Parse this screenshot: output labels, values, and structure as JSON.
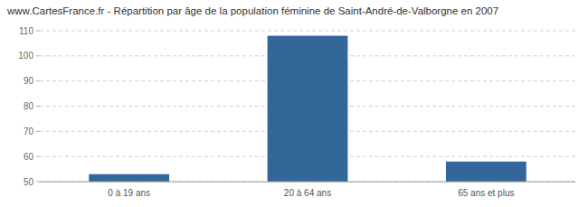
{
  "chart_data": {
    "type": "bar",
    "title": "www.CartesFrance.fr - Répartition par âge de la population féminine de Saint-André-de-Valborgne en 2007",
    "categories": [
      "0 à 19 ans",
      "20 à 64 ans",
      "65 ans et plus"
    ],
    "values": [
      53,
      108,
      58
    ],
    "color": "#336699",
    "ylim": [
      50,
      110
    ],
    "yticks": [
      50,
      60,
      70,
      80,
      90,
      100,
      110
    ],
    "grid": true
  }
}
